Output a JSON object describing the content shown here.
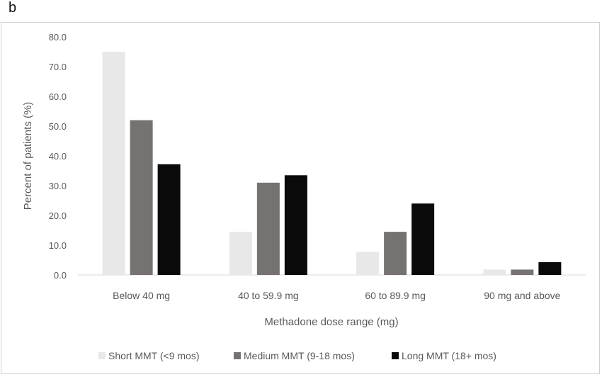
{
  "panel_label": "b",
  "chart_data": {
    "type": "bar",
    "title": "",
    "xlabel": "Methadone dose range (mg)",
    "ylabel": "Percent of patients (%)",
    "categories": [
      "Below 40 mg",
      "40 to 59.9 mg",
      "60 to 89.9 mg",
      "90 mg and above"
    ],
    "series": [
      {
        "name": "Short MMT (<9 mos)",
        "color": "#e8e8e8",
        "values": [
          75.0,
          14.5,
          7.8,
          1.8
        ]
      },
      {
        "name": "Medium MMT (9-18 mos)",
        "color": "#777272",
        "values": [
          52.0,
          31.0,
          14.5,
          1.8
        ]
      },
      {
        "name": "Long MMT (18+ mos)",
        "color": "#0a0a0a",
        "values": [
          37.2,
          33.5,
          24.0,
          4.3
        ]
      }
    ],
    "yticks": [
      "0.0",
      "10.0",
      "20.0",
      "30.0",
      "40.0",
      "50.0",
      "60.0",
      "70.0",
      "80.0"
    ],
    "ylim": [
      0,
      80
    ],
    "grid": false,
    "legend_position": "bottom"
  }
}
